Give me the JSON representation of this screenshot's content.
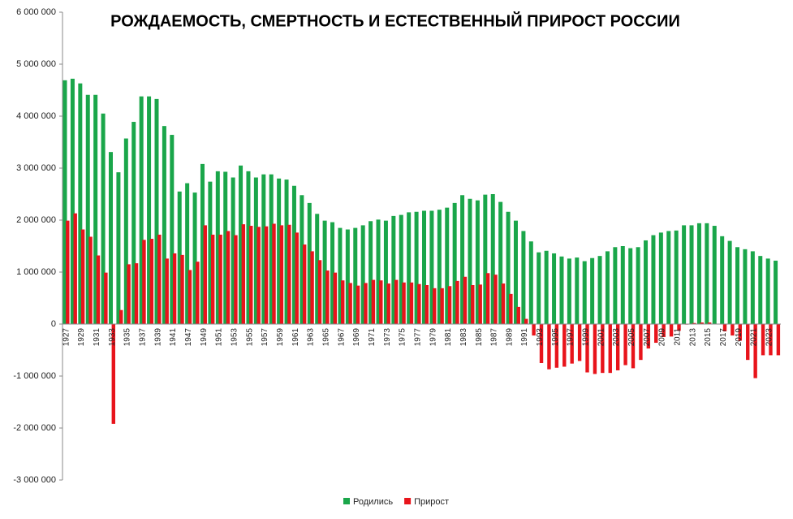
{
  "chart_data": {
    "type": "bar",
    "title": "РОЖДАЕМОСТЬ, СМЕРТНОСТЬ И ЕСТЕСТВЕННЫЙ ПРИРОСТ РОССИИ",
    "categories": [
      "1927",
      null,
      "1929",
      null,
      "1931",
      null,
      "1933",
      null,
      "1935",
      null,
      "1937",
      null,
      "1939",
      null,
      "1941",
      null,
      "1947",
      null,
      "1949",
      null,
      "1951",
      null,
      "1953",
      null,
      "1955",
      null,
      "1957",
      null,
      "1959",
      null,
      "1961",
      null,
      "1963",
      null,
      "1965",
      null,
      "1967",
      null,
      "1969",
      null,
      "1971",
      null,
      "1973",
      null,
      "1975",
      null,
      "1977",
      null,
      "1979",
      null,
      "1981",
      null,
      "1983",
      null,
      "1985",
      null,
      "1987",
      null,
      "1989",
      null,
      "1991",
      null,
      "1993",
      null,
      "1995",
      null,
      "1997",
      null,
      "1999",
      null,
      "2001",
      null,
      "2003",
      null,
      "2005",
      null,
      "2007",
      null,
      "2009",
      null,
      "2011",
      null,
      "2013",
      null,
      "2015",
      null,
      "2017",
      null,
      "2019",
      null,
      "2021",
      null,
      "2023",
      null
    ],
    "series": [
      {
        "name": "Родились",
        "color": "#1aa64a",
        "values": [
          4690000,
          4720000,
          4630000,
          4410000,
          4410000,
          4050000,
          3310000,
          2920000,
          3570000,
          3890000,
          4380000,
          4380000,
          4330000,
          3810000,
          3640000,
          2550000,
          2710000,
          2530000,
          3080000,
          2740000,
          2940000,
          2930000,
          2820000,
          3050000,
          2940000,
          2820000,
          2880000,
          2880000,
          2800000,
          2780000,
          2660000,
          2480000,
          2330000,
          2120000,
          1990000,
          1960000,
          1850000,
          1820000,
          1850000,
          1900000,
          1980000,
          2010000,
          1990000,
          2080000,
          2100000,
          2150000,
          2160000,
          2180000,
          2180000,
          2200000,
          2240000,
          2330000,
          2480000,
          2410000,
          2380000,
          2490000,
          2500000,
          2350000,
          2160000,
          1990000,
          1790000,
          1590000,
          1380000,
          1410000,
          1360000,
          1300000,
          1260000,
          1280000,
          1210000,
          1270000,
          1310000,
          1400000,
          1480000,
          1500000,
          1460000,
          1480000,
          1610000,
          1710000,
          1760000,
          1790000,
          1800000,
          1900000,
          1900000,
          1940000,
          1940000,
          1890000,
          1690000,
          1600000,
          1480000,
          1440000,
          1400000,
          1310000,
          1260000,
          1220000
        ]
      },
      {
        "name": "Прирост",
        "color": "#e8141b",
        "values": [
          1990000,
          2130000,
          1820000,
          1680000,
          1320000,
          990000,
          -1920000,
          270000,
          1150000,
          1170000,
          1620000,
          1640000,
          1720000,
          1260000,
          1360000,
          1330000,
          1040000,
          1200000,
          1900000,
          1720000,
          1720000,
          1790000,
          1710000,
          1920000,
          1890000,
          1870000,
          1880000,
          1930000,
          1900000,
          1910000,
          1760000,
          1530000,
          1400000,
          1230000,
          1030000,
          990000,
          840000,
          790000,
          740000,
          790000,
          850000,
          840000,
          780000,
          850000,
          800000,
          800000,
          770000,
          750000,
          690000,
          690000,
          730000,
          830000,
          910000,
          750000,
          760000,
          980000,
          950000,
          780000,
          580000,
          330000,
          100000,
          -220000,
          -750000,
          -870000,
          -840000,
          -820000,
          -760000,
          -710000,
          -930000,
          -960000,
          -940000,
          -940000,
          -890000,
          -790000,
          -850000,
          -690000,
          -470000,
          -360000,
          -250000,
          -240000,
          -130000,
          -10000,
          20000,
          30000,
          30000,
          -5000,
          -140000,
          -220000,
          -320000,
          -690000,
          -1040000,
          -600000,
          -600000,
          -600000
        ]
      }
    ],
    "ylim": [
      -3000000,
      6000000
    ],
    "yticks": [
      {
        "value": -3000000,
        "label": "-3 000 000"
      },
      {
        "value": -2000000,
        "label": "-2 000 000"
      },
      {
        "value": -1000000,
        "label": "-1 000 000"
      },
      0,
      {
        "value": 1000000,
        "label": "1 000 000"
      },
      {
        "value": 2000000,
        "label": "2 000 000"
      },
      {
        "value": 3000000,
        "label": "3 000 000"
      },
      {
        "value": 4000000,
        "label": "4 000 000"
      },
      {
        "value": 5000000,
        "label": "5 000 000"
      },
      {
        "value": 6000000,
        "label": "6 000 000"
      }
    ],
    "legend": "bottom"
  }
}
